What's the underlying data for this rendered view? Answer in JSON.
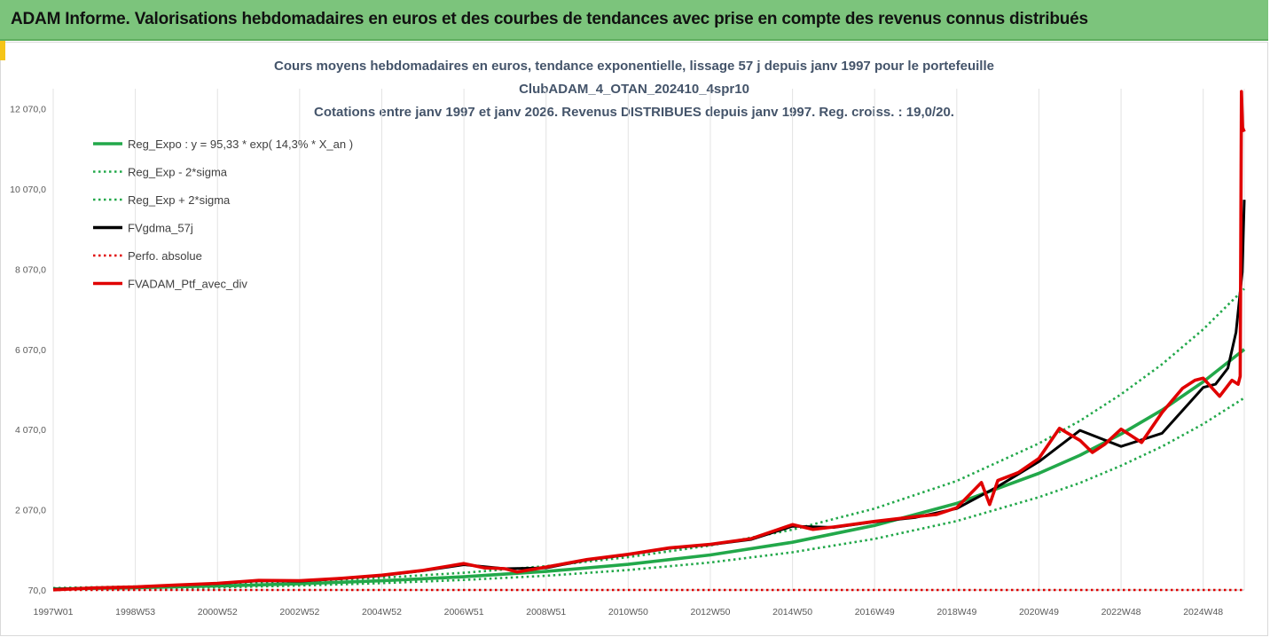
{
  "banner": {
    "title": "ADAM Informe. Valorisations hebdomadaires en euros et des courbes de tendances avec prise en compte des revenus connus distribués"
  },
  "colors": {
    "banner_bg": "#7cc47c",
    "trend": "#22a84a",
    "fvgdma": "#000000",
    "ptf": "#e00000",
    "title_text": "#44546a"
  },
  "chart_data": {
    "type": "line",
    "title": [
      "Cours moyens hebdomadaires  en euros, tendance exponentielle, lissage 57 j depuis janv 1997 pour le portefeuille",
      "ClubADAM_4_OTAN_202410_4spr10",
      "Cotations entre janv 1997 et janv 2026. Revenus DISTRIBUES depuis janv 1997. Reg. croiss. : 19,0/20."
    ],
    "xlabel": "",
    "ylabel": "",
    "x_range": [
      1997.0,
      2026.0
    ],
    "ylim": [
      70,
      12570
    ],
    "y_ticks": [
      {
        "value": 70,
        "label": "70,0"
      },
      {
        "value": 2070,
        "label": "2 070,0"
      },
      {
        "value": 4070,
        "label": "4 070,0"
      },
      {
        "value": 6070,
        "label": "6 070,0"
      },
      {
        "value": 8070,
        "label": "8 070,0"
      },
      {
        "value": 10070,
        "label": "10 070,0"
      },
      {
        "value": 12070,
        "label": "12 070,0"
      }
    ],
    "x_ticks": [
      {
        "value": 1997.0,
        "label": "1997W01"
      },
      {
        "value": 1999.0,
        "label": "1998W53"
      },
      {
        "value": 2001.0,
        "label": "2000W52"
      },
      {
        "value": 2003.0,
        "label": "2002W52"
      },
      {
        "value": 2005.0,
        "label": "2004W52"
      },
      {
        "value": 2007.0,
        "label": "2006W51"
      },
      {
        "value": 2009.0,
        "label": "2008W51"
      },
      {
        "value": 2011.0,
        "label": "2010W50"
      },
      {
        "value": 2013.0,
        "label": "2012W50"
      },
      {
        "value": 2015.0,
        "label": "2014W50"
      },
      {
        "value": 2017.0,
        "label": "2016W49"
      },
      {
        "value": 2019.0,
        "label": "2018W49"
      },
      {
        "value": 2021.0,
        "label": "2020W49"
      },
      {
        "value": 2023.0,
        "label": "2022W48"
      },
      {
        "value": 2025.0,
        "label": "2024W48"
      }
    ],
    "grid": "vertical",
    "legend_position": "top-left",
    "series": [
      {
        "name": "Reg_Expo : y = 95,33 * exp( 14,3% *  X_an )",
        "style": "solid",
        "color": "#22a84a",
        "x": [
          1997,
          1999,
          2001,
          2003,
          2005,
          2007,
          2009,
          2011,
          2013,
          2015,
          2017,
          2019,
          2021,
          2022,
          2023,
          2024,
          2025,
          2026
        ],
        "y": [
          95,
          126,
          169,
          225,
          300,
          400,
          532,
          710,
          945,
          1260,
          1680,
          2230,
          2980,
          3430,
          3960,
          4560,
          5260,
          6070
        ]
      },
      {
        "name": "Reg_Exp - 2*sigma",
        "style": "dotted",
        "color": "#22a84a",
        "x": [
          1997,
          1999,
          2001,
          2003,
          2005,
          2007,
          2009,
          2011,
          2013,
          2015,
          2017,
          2019,
          2021,
          2022,
          2023,
          2024,
          2025,
          2026
        ],
        "y": [
          76,
          101,
          135,
          180,
          240,
          320,
          425,
          568,
          756,
          1010,
          1344,
          1790,
          2385,
          2740,
          3170,
          3650,
          4210,
          4860
        ]
      },
      {
        "name": "Reg_Exp + 2*sigma",
        "style": "dotted",
        "color": "#22a84a",
        "x": [
          1997,
          1999,
          2001,
          2003,
          2005,
          2007,
          2009,
          2011,
          2013,
          2015,
          2017,
          2019,
          2021,
          2022,
          2023,
          2024,
          2025,
          2026
        ],
        "y": [
          118,
          158,
          211,
          281,
          375,
          500,
          665,
          888,
          1180,
          1575,
          2100,
          2790,
          3725,
          4290,
          4950,
          5700,
          6570,
          7580
        ]
      },
      {
        "name": "FVgdma_57j",
        "style": "solid",
        "color": "#000000",
        "x": [
          1997,
          1998,
          1999,
          2000,
          2001,
          2002,
          2003,
          2004,
          2005,
          2006,
          2007,
          2008,
          2009,
          2010,
          2011,
          2012,
          2013,
          2014,
          2015,
          2016,
          2017,
          2018,
          2019,
          2020,
          2021,
          2022,
          2023,
          2024,
          2025,
          2025.3,
          2025.6,
          2025.8,
          2025.95,
          2026
        ],
        "y": [
          90,
          120,
          140,
          190,
          230,
          300,
          290,
          350,
          430,
          550,
          700,
          600,
          620,
          820,
          950,
          1110,
          1200,
          1330,
          1660,
          1630,
          1770,
          1880,
          2100,
          2650,
          3270,
          4050,
          3650,
          3980,
          5120,
          5200,
          5600,
          6500,
          8000,
          9800
        ]
      },
      {
        "name": "Perfo. absolue",
        "style": "dotted",
        "color": "#e00000",
        "x": [
          1997,
          2026
        ],
        "y": [
          70,
          70
        ]
      },
      {
        "name": "FVADAM_Ptf_avec_div",
        "style": "solid",
        "color": "#e00000",
        "x": [
          1997,
          1998,
          1999,
          2000,
          2001,
          2002,
          2003,
          2004,
          2005,
          2006,
          2007,
          2007.5,
          2008,
          2008.3,
          2009,
          2010,
          2011,
          2012,
          2013,
          2014,
          2015,
          2015.5,
          2016,
          2017,
          2018,
          2018.5,
          2019,
          2019.6,
          2019.8,
          2020,
          2020.5,
          2021,
          2021.5,
          2022,
          2022.3,
          2022.6,
          2023,
          2023.5,
          2024,
          2024.5,
          2024.8,
          2025,
          2025.4,
          2025.7,
          2025.85,
          2025.9,
          2025.93,
          2025.96,
          2026
        ],
        "y": [
          75,
          120,
          145,
          195,
          235,
          310,
          300,
          360,
          440,
          560,
          730,
          620,
          600,
          520,
          640,
          830,
          960,
          1120,
          1210,
          1350,
          1700,
          1580,
          1640,
          1780,
          1900,
          1950,
          2120,
          2750,
          2200,
          2800,
          3000,
          3350,
          4100,
          3800,
          3500,
          3700,
          4080,
          3750,
          4500,
          5100,
          5300,
          5350,
          4900,
          5300,
          5200,
          5400,
          12500,
          11600,
          11500
        ]
      }
    ]
  }
}
